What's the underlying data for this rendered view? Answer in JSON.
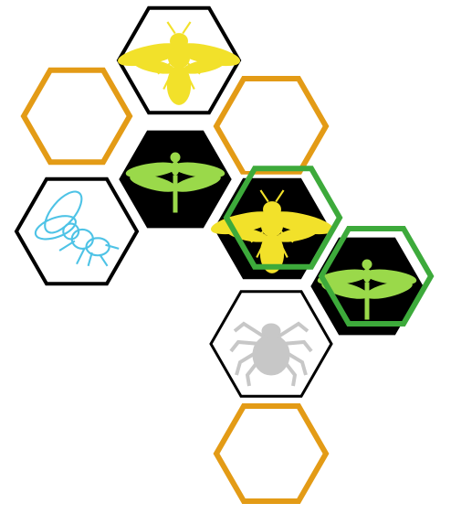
{
  "colors": {
    "honey": "#E39B16",
    "green": "#3DAA3B",
    "black": "#000000",
    "white": "#FFFFFF",
    "wasp_yellow": "#F2E12A",
    "dragonfly_green": "#9AD94A",
    "fly_cyan": "#4EC3E6",
    "tick_gray": "#C7C7C7"
  },
  "hexes": [
    {
      "name": "hex-wasp-top",
      "fill": "white",
      "stroke": "black",
      "insect": "wasp-icon"
    },
    {
      "name": "hex-empty-left",
      "fill": "white",
      "stroke": "honey",
      "insect": null
    },
    {
      "name": "hex-empty-right",
      "fill": "white",
      "stroke": "honey",
      "insect": null
    },
    {
      "name": "hex-dragonfly-left",
      "fill": "black",
      "stroke": "white",
      "insect": "dragonfly-icon"
    },
    {
      "name": "hex-fly",
      "fill": "white",
      "stroke": "black",
      "insect": "fly-icon"
    },
    {
      "name": "hex-wasp-center",
      "fill": "black",
      "stroke": "white",
      "insect": "wasp-icon"
    },
    {
      "name": "hex-dragonfly-right",
      "fill": "black",
      "stroke": "white",
      "insect": "dragonfly-icon"
    },
    {
      "name": "hex-tick",
      "fill": "white",
      "stroke": "black",
      "insect": "tick-icon"
    },
    {
      "name": "hex-empty-bottom",
      "fill": "white",
      "stroke": "honey",
      "insect": null
    }
  ],
  "highlights": [
    {
      "name": "highlight-hex-center",
      "stroke": "green"
    },
    {
      "name": "highlight-hex-right",
      "stroke": "green"
    }
  ]
}
